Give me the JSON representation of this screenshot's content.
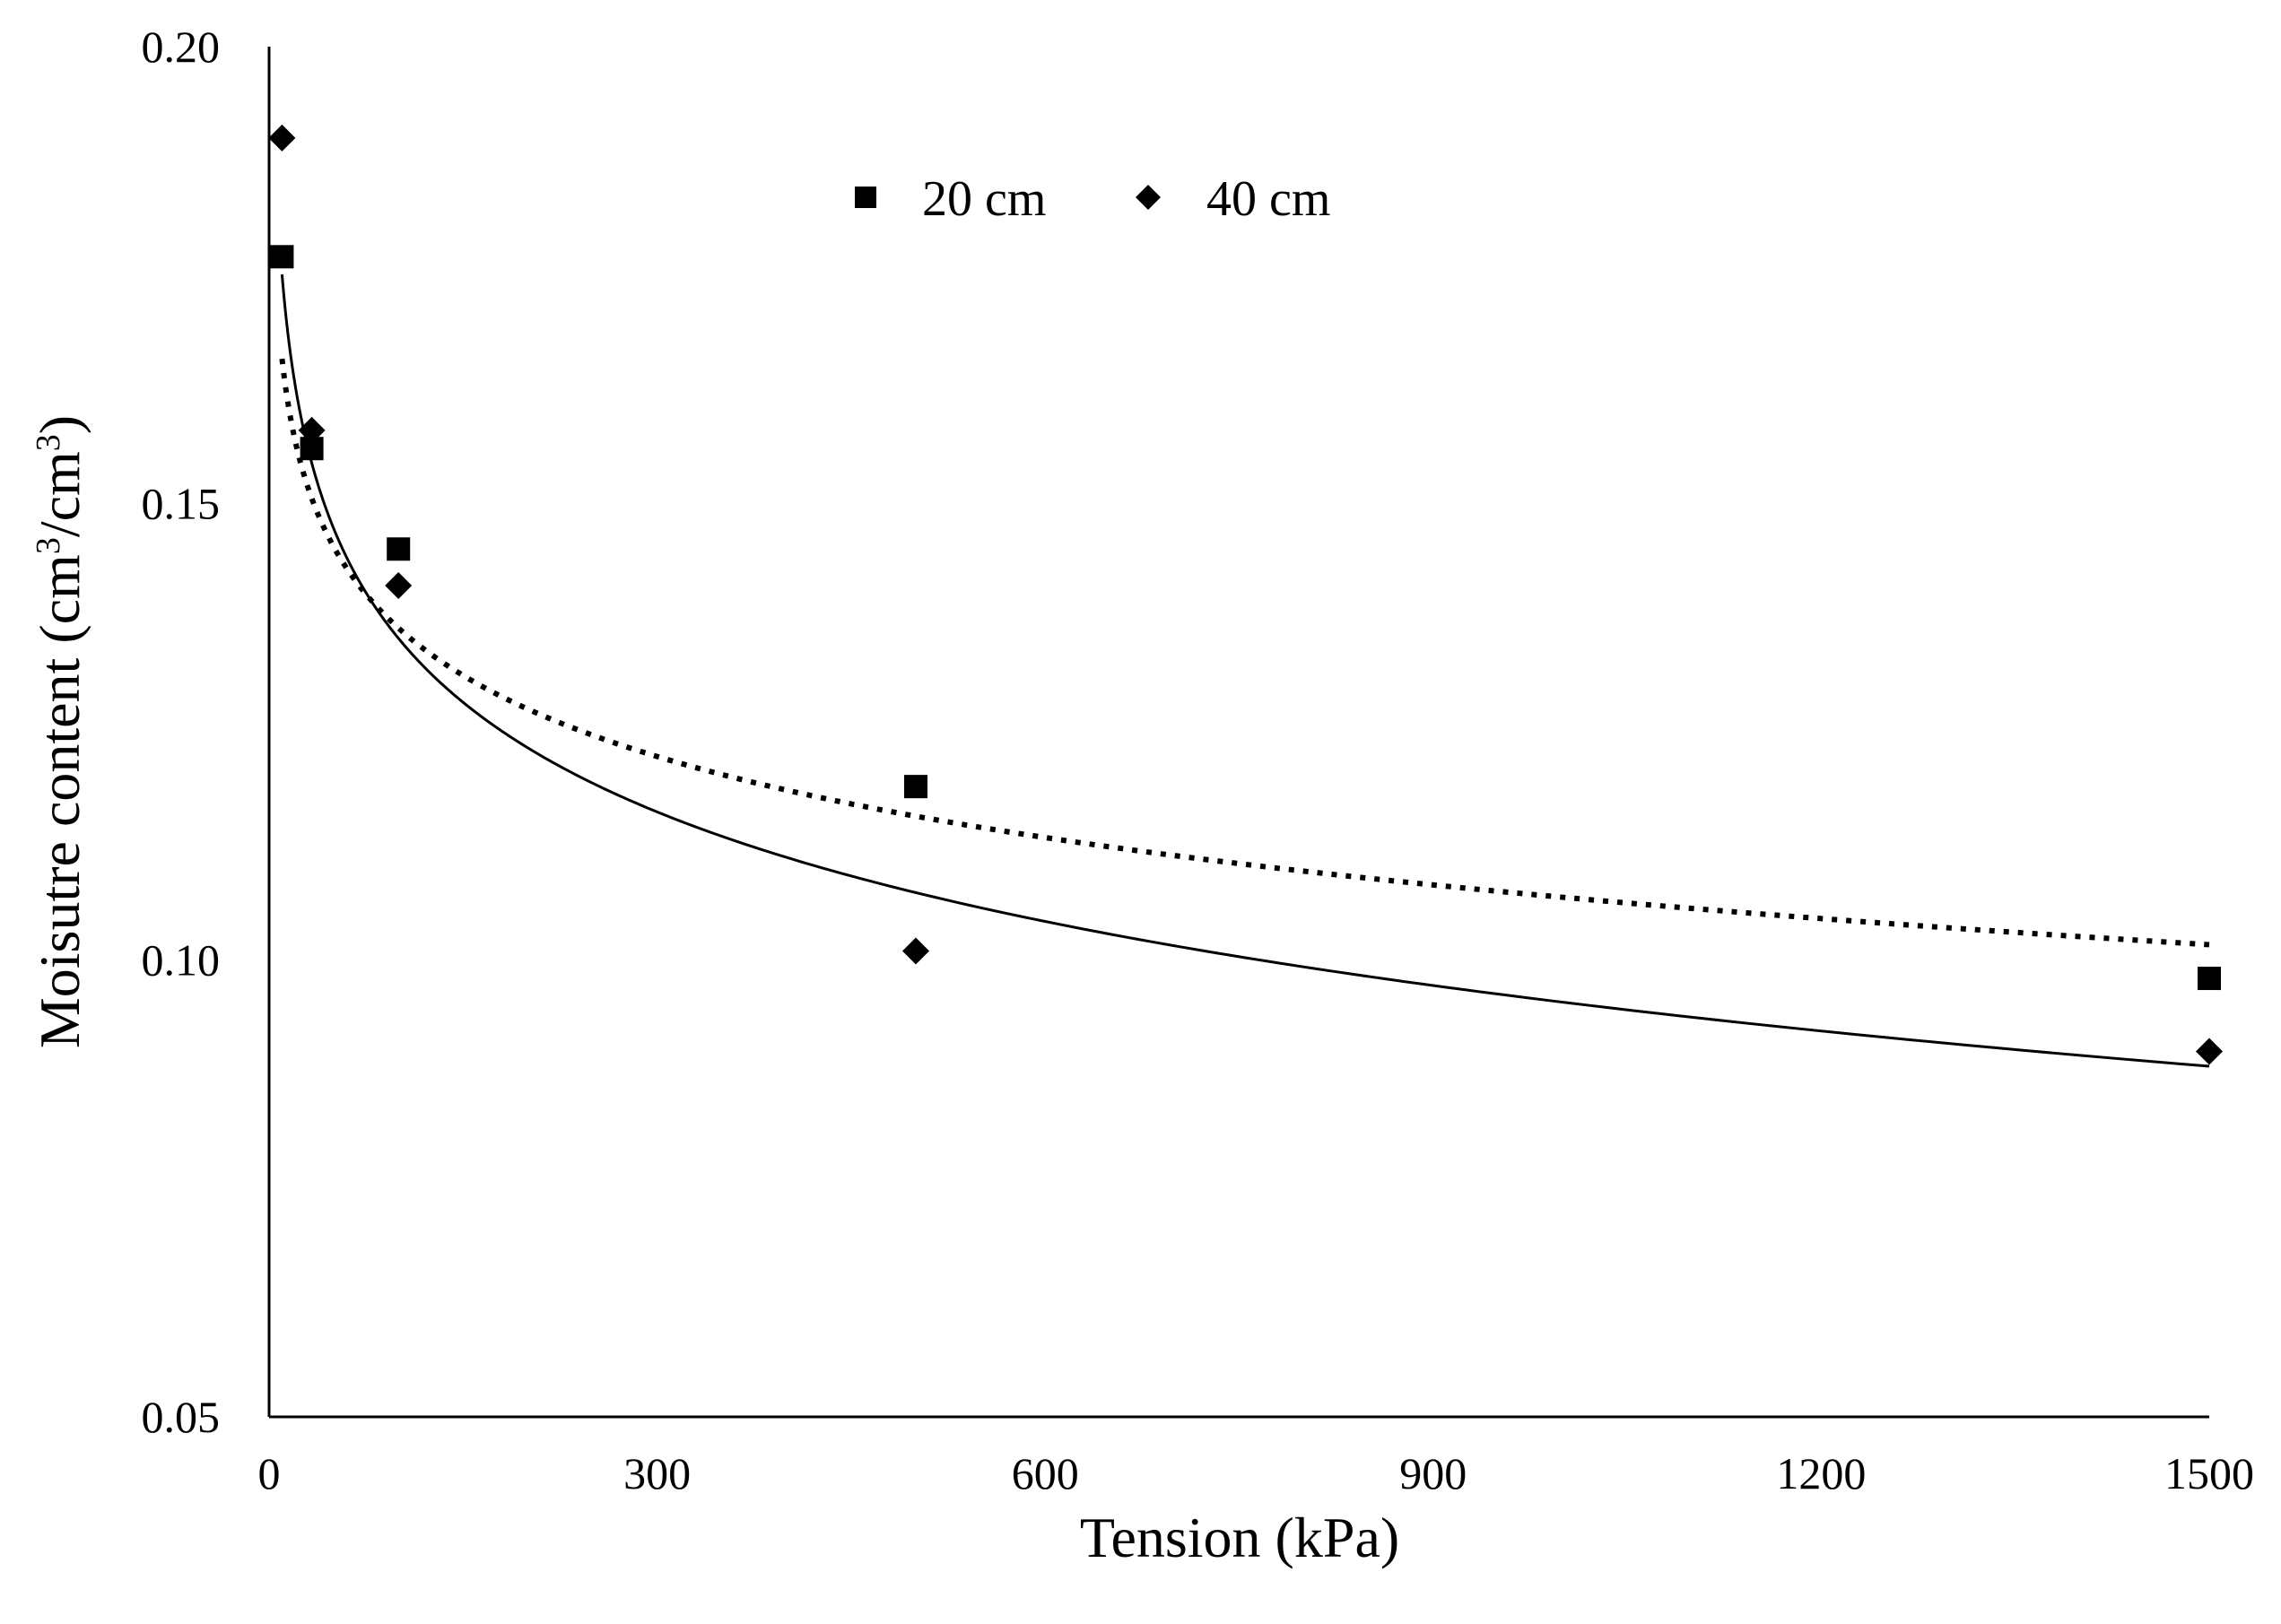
{
  "chart_data": {
    "type": "scatter",
    "title": "",
    "xlabel": "Tension (kPa)",
    "ylabel_prefix": "Moisutre content (cm",
    "ylabel_sup1": "3",
    "ylabel_mid": "/cm",
    "ylabel_sup2": "3",
    "ylabel_suffix": ")",
    "xlim": [
      0,
      1500
    ],
    "ylim": [
      0.05,
      0.2
    ],
    "x_ticks": [
      0,
      300,
      600,
      900,
      1200,
      1500
    ],
    "x_tick_labels": [
      "0",
      "300",
      "600",
      "900",
      "1200",
      "1500"
    ],
    "y_ticks": [
      0.05,
      0.1,
      0.15,
      0.2
    ],
    "y_tick_labels": [
      "0.05",
      "0.10",
      "0.15",
      "0.20"
    ],
    "grid": false,
    "legend_position": "top-center",
    "series": [
      {
        "name": "20 cm",
        "marker": "square",
        "x": [
          10,
          33,
          100,
          500,
          1500
        ],
        "y": [
          0.177,
          0.156,
          0.145,
          0.119,
          0.098
        ],
        "trendline": {
          "style": "dotted",
          "model": "logarithmic",
          "a": 0.1953,
          "b": -0.0128
        }
      },
      {
        "name": "40 cm",
        "marker": "diamond",
        "x": [
          10,
          33,
          100,
          500,
          1500
        ],
        "y": [
          0.19,
          0.158,
          0.141,
          0.101,
          0.09
        ],
        "trendline": {
          "style": "solid",
          "model": "logarithmic",
          "a": 0.2149,
          "b": -0.0173
        }
      }
    ]
  }
}
